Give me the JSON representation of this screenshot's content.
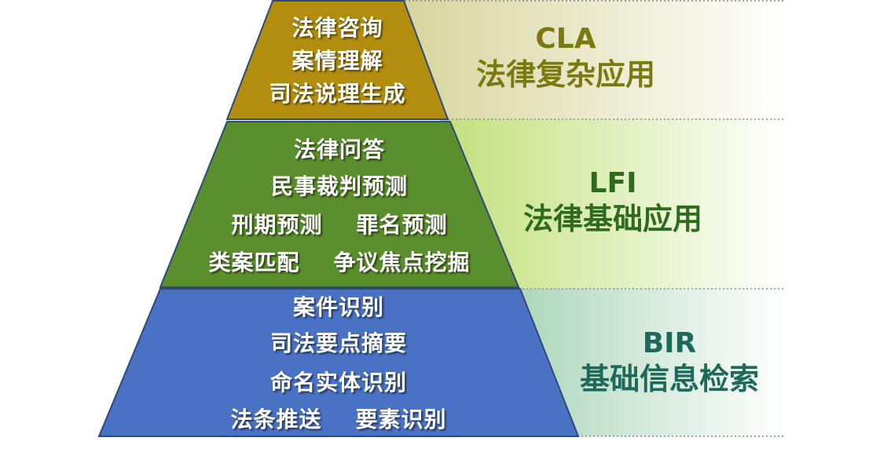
{
  "tiers": [
    {
      "code": "CLA",
      "name": "法律复杂应用",
      "items": [
        "法律咨询",
        "案情理解",
        "司法说理生成"
      ],
      "fill": "#B38E0E",
      "band": "#D6D49A",
      "label_color": "#7A7A10"
    },
    {
      "code": "LFI",
      "name": "法律基础应用",
      "items": [
        "法律问答",
        "民事裁判预测",
        "刑期预测    罪名预测",
        "类案匹配    争议焦点挖掘"
      ],
      "fill": "#5B8E2C",
      "band": "#C2E07A",
      "label_color": "#2F6B1E"
    },
    {
      "code": "BIR",
      "name": "基础信息检索",
      "items": [
        "案件识别",
        "司法要点摘要",
        "命名实体识别",
        "法条推送    要素识别"
      ],
      "fill": "#4A72C4",
      "band": "#A9D4B8",
      "label_color": "#1E6A5A"
    }
  ]
}
